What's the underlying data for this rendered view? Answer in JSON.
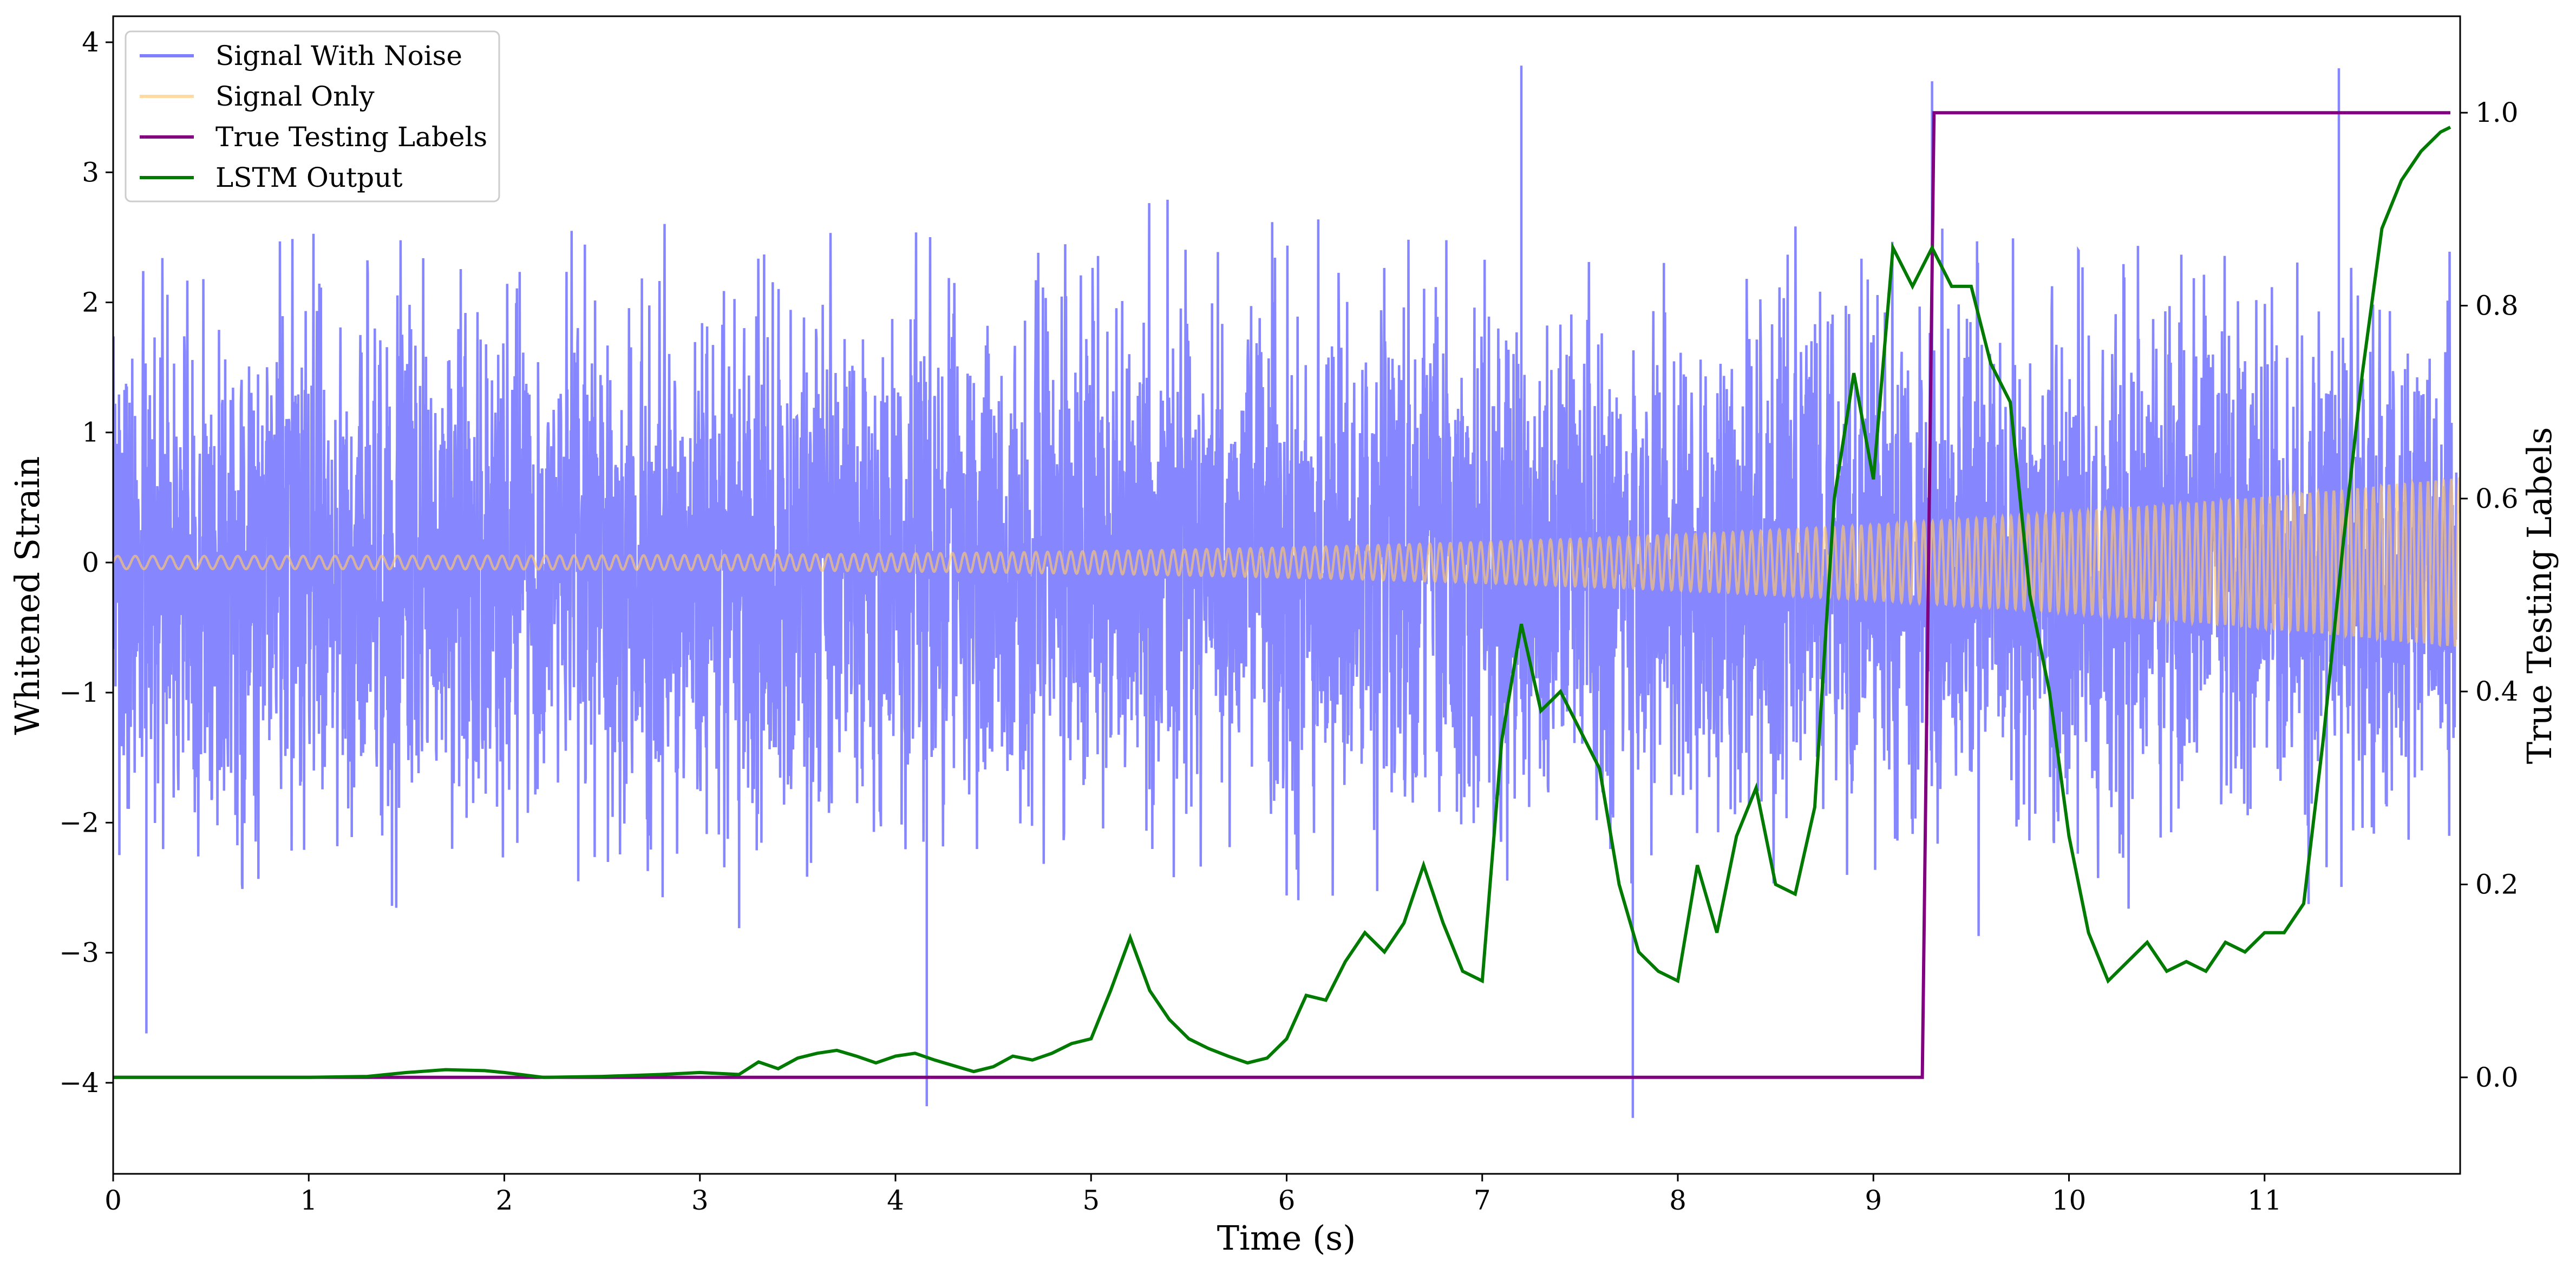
{
  "chart_data": {
    "type": "line",
    "title": "",
    "xlabel": "Time (s)",
    "ylabel": "Whitened Strain",
    "y2label": "True Testing Labels",
    "xlim": [
      0,
      12
    ],
    "ylim": [
      -4.7,
      4.2
    ],
    "y2lim": [
      -0.1,
      1.1
    ],
    "x_ticks": [
      0,
      1,
      2,
      3,
      4,
      5,
      6,
      7,
      8,
      9,
      10,
      11
    ],
    "y_ticks": [
      -4,
      -3,
      -2,
      -1,
      0,
      1,
      2,
      3,
      4
    ],
    "y2_ticks": [
      0.0,
      0.2,
      0.4,
      0.6,
      0.8,
      1.0
    ],
    "x_tick_labels": [
      "0",
      "1",
      "2",
      "3",
      "4",
      "5",
      "6",
      "7",
      "8",
      "9",
      "10",
      "11"
    ],
    "y_tick_labels": [
      "−4",
      "−3",
      "−2",
      "−1",
      "0",
      "1",
      "2",
      "3",
      "4"
    ],
    "y2_tick_labels": [
      "0.0",
      "0.2",
      "0.4",
      "0.6",
      "0.8",
      "1.0"
    ],
    "legend_position": "top-left",
    "grid": false,
    "series": [
      {
        "name": "Signal With Noise",
        "axis": "left",
        "color": "#7f7fff",
        "style": "dense noise, amplitude about ±1.5 with peaks to about ±3.8",
        "notable_extremes": [
          {
            "x": 0.17,
            "y": -3.62
          },
          {
            "x": 4.16,
            "y": -4.18
          },
          {
            "x": 7.77,
            "y": -4.27
          },
          {
            "x": 7.2,
            "y": 3.82
          },
          {
            "x": 11.38,
            "y": 3.8
          },
          {
            "x": 9.3,
            "y": 3.7
          }
        ]
      },
      {
        "name": "Signal Only",
        "axis": "left",
        "color": "#ffc870",
        "style": "chirp oscillation, amplitude growing from about 0.05 at t=0 to about 0.65 at t=12"
      },
      {
        "name": "True Testing Labels",
        "axis": "right",
        "color": "#800080",
        "x": [
          0,
          9.25,
          9.31,
          11.95
        ],
        "y": [
          0,
          0,
          1,
          1
        ]
      },
      {
        "name": "LSTM Output",
        "axis": "right",
        "color": "#007a00",
        "x": [
          0,
          0.5,
          1.0,
          1.3,
          1.5,
          1.7,
          1.9,
          2.0,
          2.2,
          2.5,
          2.8,
          3.0,
          3.2,
          3.3,
          3.4,
          3.5,
          3.6,
          3.7,
          3.8,
          3.9,
          4.0,
          4.1,
          4.2,
          4.3,
          4.4,
          4.5,
          4.6,
          4.7,
          4.8,
          4.9,
          5.0,
          5.1,
          5.2,
          5.3,
          5.4,
          5.5,
          5.6,
          5.7,
          5.8,
          5.9,
          6.0,
          6.1,
          6.2,
          6.3,
          6.4,
          6.5,
          6.6,
          6.7,
          6.8,
          6.9,
          7.0,
          7.1,
          7.2,
          7.3,
          7.4,
          7.5,
          7.6,
          7.7,
          7.8,
          7.9,
          8.0,
          8.1,
          8.2,
          8.3,
          8.4,
          8.5,
          8.6,
          8.7,
          8.8,
          8.9,
          9.0,
          9.1,
          9.2,
          9.3,
          9.4,
          9.5,
          9.6,
          9.7,
          9.8,
          9.9,
          10.0,
          10.1,
          10.2,
          10.3,
          10.4,
          10.5,
          10.6,
          10.7,
          10.8,
          10.9,
          11.0,
          11.1,
          11.2,
          11.3,
          11.4,
          11.5,
          11.6,
          11.7,
          11.8,
          11.9,
          11.95
        ],
        "y": [
          0.0,
          0.0,
          0.0,
          0.001,
          0.005,
          0.008,
          0.007,
          0.005,
          0.0,
          0.001,
          0.003,
          0.005,
          0.003,
          0.016,
          0.009,
          0.02,
          0.025,
          0.028,
          0.022,
          0.015,
          0.022,
          0.025,
          0.018,
          0.012,
          0.006,
          0.011,
          0.022,
          0.018,
          0.025,
          0.035,
          0.04,
          0.09,
          0.145,
          0.09,
          0.06,
          0.04,
          0.03,
          0.022,
          0.015,
          0.02,
          0.04,
          0.085,
          0.08,
          0.12,
          0.15,
          0.13,
          0.16,
          0.22,
          0.16,
          0.11,
          0.1,
          0.35,
          0.47,
          0.38,
          0.4,
          0.36,
          0.32,
          0.2,
          0.13,
          0.11,
          0.1,
          0.22,
          0.15,
          0.25,
          0.3,
          0.2,
          0.19,
          0.28,
          0.6,
          0.73,
          0.62,
          0.86,
          0.82,
          0.86,
          0.82,
          0.82,
          0.74,
          0.7,
          0.5,
          0.4,
          0.25,
          0.15,
          0.1,
          0.12,
          0.14,
          0.11,
          0.12,
          0.11,
          0.14,
          0.13,
          0.15,
          0.15,
          0.18,
          0.35,
          0.55,
          0.73,
          0.88,
          0.93,
          0.96,
          0.98,
          0.985
        ]
      }
    ]
  }
}
